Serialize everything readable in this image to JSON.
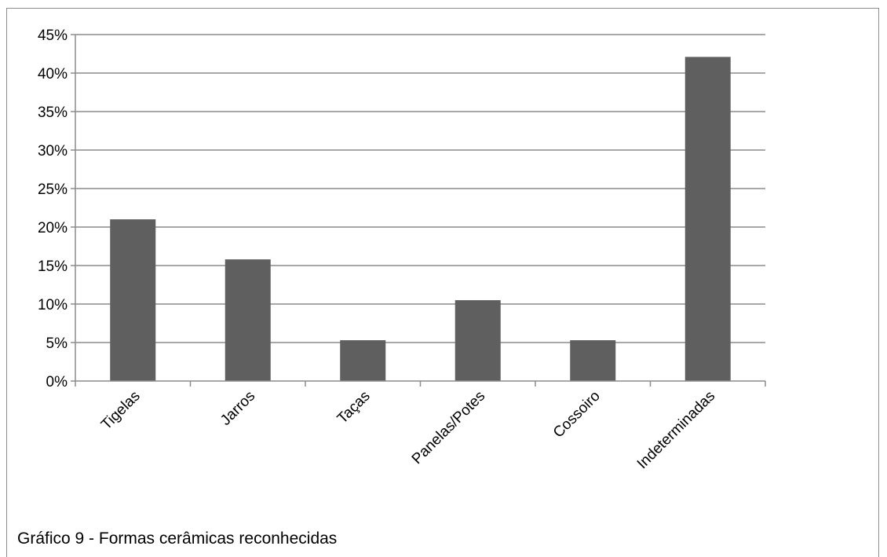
{
  "caption": "Gráfico 9 - Formas cerâmicas reconhecidas",
  "chart_data": {
    "type": "bar",
    "title": "",
    "xlabel": "",
    "ylabel": "",
    "categories": [
      "Tigelas",
      "Jarros",
      "Taças",
      "Panelas/Potes",
      "Cossoiro",
      "Indeterminadas"
    ],
    "values": [
      21.0,
      15.8,
      5.3,
      10.5,
      5.3,
      42.1
    ],
    "y_unit": "%",
    "ylim": [
      0,
      45
    ],
    "y_ticks": [
      "0%",
      "5%",
      "10%",
      "15%",
      "20%",
      "25%",
      "30%",
      "35%",
      "40%",
      "45%"
    ],
    "grid": true,
    "legend": "none",
    "bar_color": "#5f5f5f",
    "grid_color": "#8c8c8c"
  }
}
